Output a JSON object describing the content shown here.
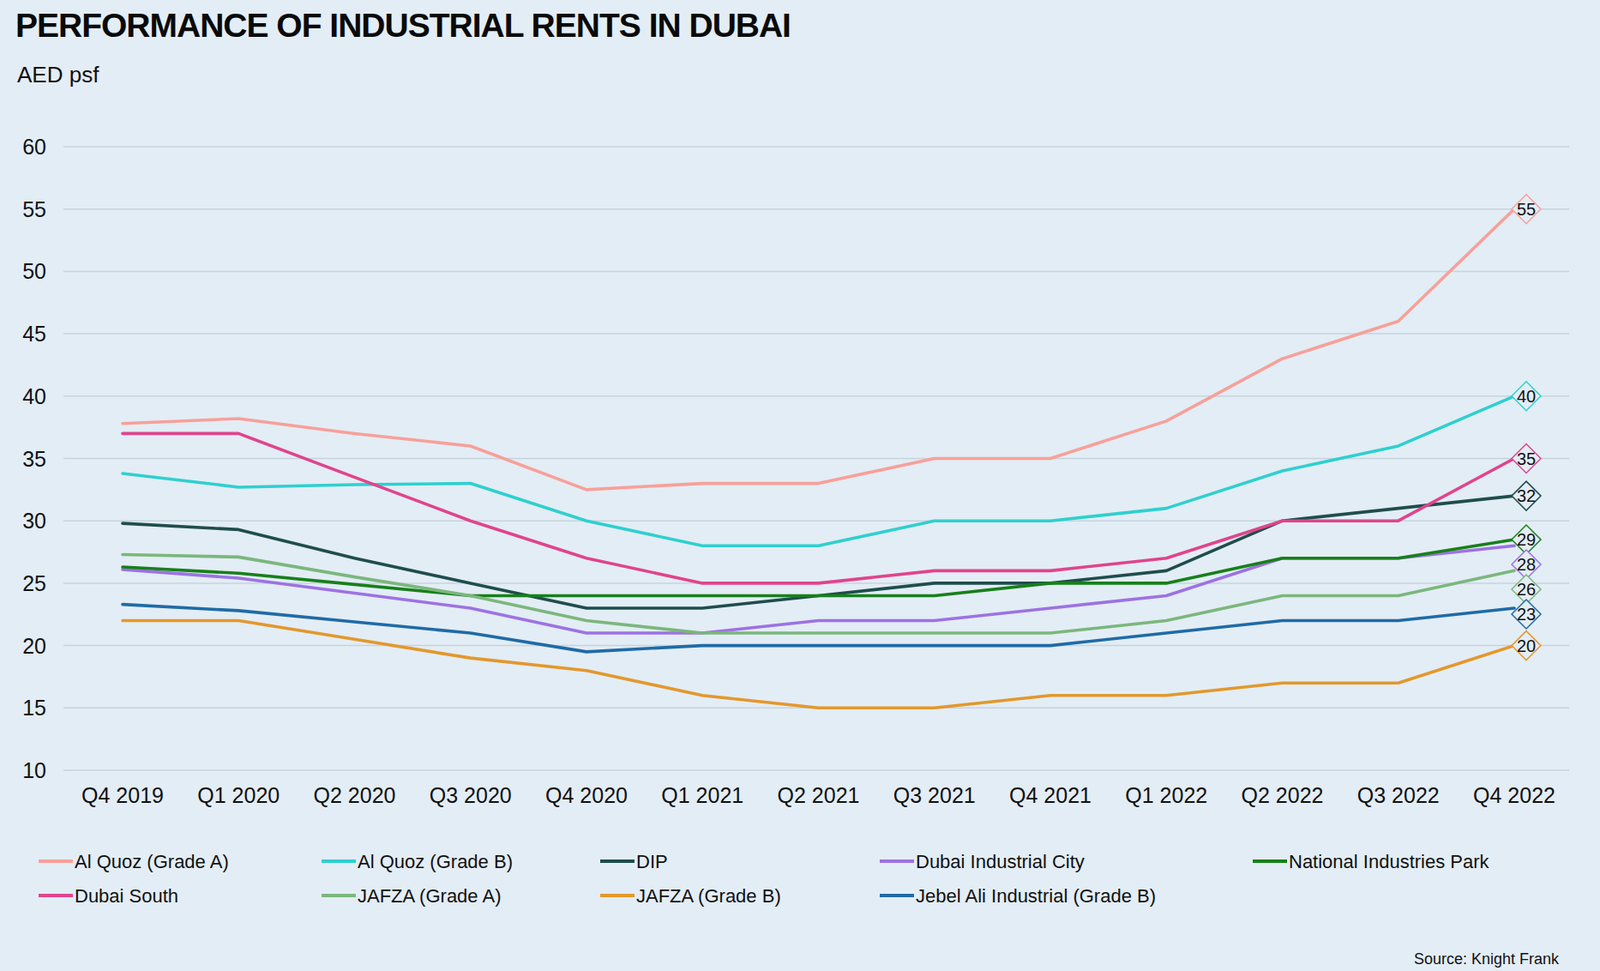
{
  "chart_data": {
    "type": "line",
    "title": "PERFORMANCE OF INDUSTRIAL RENTS IN DUBAI",
    "subtitle": "AED psf",
    "source": "Source: Knight Frank",
    "categories": [
      "Q4 2019",
      "Q1 2020",
      "Q2 2020",
      "Q3 2020",
      "Q4 2020",
      "Q1 2021",
      "Q2 2021",
      "Q3 2021",
      "Q4 2021",
      "Q1 2022",
      "Q2 2022",
      "Q3 2022",
      "Q4 2022"
    ],
    "ylim": [
      10,
      60
    ],
    "yticks": [
      10,
      15,
      20,
      25,
      30,
      35,
      40,
      45,
      50,
      55,
      60
    ],
    "grid": true,
    "legend": "bottom",
    "data_labels": true,
    "series": [
      {
        "name": "Al Quoz (Grade A)",
        "color": "#f7a09a",
        "values": [
          37.8,
          38.2,
          37,
          36,
          32.5,
          33,
          33,
          35,
          35,
          38,
          43,
          46,
          55
        ],
        "value_labels": [
          null,
          null,
          null,
          null,
          null,
          null,
          null,
          null,
          null,
          null,
          null,
          null,
          "55"
        ]
      },
      {
        "name": "Al Quoz (Grade B)",
        "color": "#2ed0cf",
        "values": [
          33.8,
          32.7,
          32.9,
          33,
          30,
          28,
          28,
          30,
          30,
          31,
          34,
          36,
          40
        ],
        "value_labels": [
          null,
          null,
          null,
          null,
          null,
          null,
          null,
          null,
          null,
          null,
          null,
          null,
          "40"
        ]
      },
      {
        "name": "DIP",
        "color": "#1f4d4d",
        "values": [
          29.8,
          29.3,
          27,
          25,
          23,
          23,
          24,
          25,
          25,
          26,
          30,
          31,
          32
        ],
        "value_labels": [
          null,
          null,
          null,
          null,
          null,
          null,
          null,
          null,
          null,
          null,
          null,
          null,
          "32"
        ]
      },
      {
        "name": "Dubai Industrial City",
        "color": "#9d72e3",
        "values": [
          26.1,
          25.4,
          24.2,
          23,
          21,
          21,
          22,
          22,
          23,
          24,
          27,
          27,
          28
        ],
        "value_labels": [
          null,
          null,
          null,
          null,
          null,
          null,
          null,
          null,
          null,
          null,
          null,
          null,
          "28"
        ]
      },
      {
        "name": "National Industries Park",
        "color": "#17801a",
        "values": [
          26.3,
          25.8,
          24.9,
          24,
          24,
          24,
          24,
          24,
          25,
          25,
          27,
          27,
          28.5
        ],
        "value_labels": [
          null,
          null,
          null,
          null,
          null,
          null,
          null,
          null,
          null,
          null,
          null,
          null,
          "29"
        ]
      },
      {
        "name": "Dubai South",
        "color": "#e0448d",
        "values": [
          37,
          37,
          33.5,
          30,
          27,
          25,
          25,
          26,
          26,
          27,
          30,
          30,
          35
        ],
        "value_labels": [
          null,
          null,
          null,
          null,
          null,
          null,
          null,
          null,
          null,
          null,
          null,
          null,
          "35"
        ]
      },
      {
        "name": "JAFZA (Grade A)",
        "color": "#7bb77c",
        "values": [
          27.3,
          27.1,
          25.5,
          24,
          22,
          21,
          21,
          21,
          21,
          22,
          24,
          24,
          26
        ],
        "value_labels": [
          null,
          null,
          null,
          null,
          null,
          null,
          null,
          null,
          null,
          null,
          null,
          null,
          "26"
        ]
      },
      {
        "name": "JAFZA (Grade B)",
        "color": "#e3982c",
        "values": [
          22,
          22,
          20.5,
          19,
          18,
          16,
          15,
          15,
          16,
          16,
          17,
          17,
          20
        ],
        "value_labels": [
          null,
          null,
          null,
          null,
          null,
          null,
          null,
          null,
          null,
          null,
          null,
          null,
          "20"
        ]
      },
      {
        "name": "Jebel Ali Industrial (Grade B)",
        "color": "#1f6ba6",
        "values": [
          23.3,
          22.8,
          21.9,
          21,
          19.5,
          20,
          20,
          20,
          20,
          21,
          22,
          22,
          23
        ],
        "value_labels": [
          null,
          null,
          null,
          null,
          null,
          null,
          null,
          null,
          null,
          null,
          null,
          null,
          "23"
        ]
      }
    ]
  }
}
